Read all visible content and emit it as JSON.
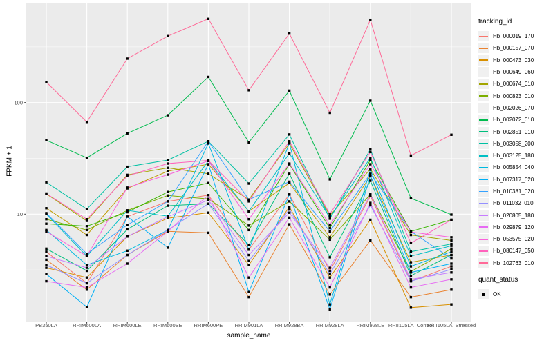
{
  "figure": {
    "background": "#FFFFFF",
    "panel_background": "#EBEBEB",
    "gridline_color": "#FFFFFF",
    "tick_color": "#333333",
    "tick_label_color": "#4D4D4D",
    "marker_color": "#000000"
  },
  "legend": {
    "tracking_title": "tracking_id",
    "quant_title": "quant_status",
    "quant_items": [
      {
        "label": "OK",
        "marker": "black-square"
      }
    ]
  },
  "chart_data": {
    "type": "line",
    "title": "",
    "xlabel": "sample_name",
    "ylabel": "FPKM + 1",
    "y_scale": "log10",
    "ylim": [
      1.15,
      740
    ],
    "y_major_ticks": [
      {
        "value": 100,
        "label": "100"
      },
      {
        "value": 10,
        "label": "10"
      }
    ],
    "y_minor_ticks": [
      3.162,
      31.62,
      316.2
    ],
    "grid": true,
    "legend_position": "right",
    "marker": "filled-black-square (quant_status = OK)",
    "categories": [
      "PB350LA",
      "RRIM600LA",
      "RRIM600LE",
      "RRIM600SE",
      "RRIM600PE",
      "RRIM901LA",
      "RRIM928BA",
      "RRIM928LA",
      "RRIM928LE",
      "RRII105LA_Control",
      "RRII105LA_Stressed"
    ],
    "series": [
      {
        "name": "Hb_000019_170",
        "color": "#F8766D",
        "values": [
          4.6,
          2.4,
          9.5,
          13.0,
          14.8,
          4.8,
          15.0,
          3.1,
          14.5,
          2.5,
          3.4
        ]
      },
      {
        "name": "Hb_000157_070",
        "color": "#EA8331",
        "values": [
          3.9,
          2.1,
          4.3,
          7.0,
          6.8,
          1.8,
          8.1,
          1.9,
          5.8,
          1.8,
          2.1
        ]
      },
      {
        "name": "Hb_000473_030",
        "color": "#D89000",
        "values": [
          3.3,
          2.7,
          6.3,
          9.2,
          10.3,
          3.5,
          11.6,
          2.7,
          8.9,
          1.45,
          1.55
        ]
      },
      {
        "name": "Hb_000649_060",
        "color": "#C09B00",
        "values": [
          11.3,
          6.5,
          17.0,
          24.3,
          28.0,
          10.6,
          19.0,
          6.2,
          22.0,
          3.7,
          4.3
        ]
      },
      {
        "name": "Hb_000674_010",
        "color": "#A3A500",
        "values": [
          15.2,
          8.7,
          22.5,
          26.0,
          23.0,
          13.5,
          43.0,
          9.7,
          25.4,
          6.5,
          5.8
        ]
      },
      {
        "name": "Hb_000823_010",
        "color": "#7CAE00",
        "values": [
          9.0,
          7.2,
          10.8,
          14.7,
          13.7,
          7.9,
          13.0,
          5.9,
          15.0,
          3.05,
          4.9
        ]
      },
      {
        "name": "Hb_002026_070",
        "color": "#39B600",
        "values": [
          8.2,
          7.8,
          10.4,
          15.8,
          19.0,
          7.2,
          28.0,
          7.5,
          30.5,
          7.0,
          8.9
        ]
      },
      {
        "name": "Hb_002072_010",
        "color": "#00BB4E",
        "values": [
          46,
          32,
          53,
          77,
          170,
          44,
          128,
          20.5,
          104,
          13.9,
          9.9
        ]
      },
      {
        "name": "Hb_002851_010",
        "color": "#00BF7D",
        "values": [
          4.9,
          3.1,
          7.3,
          11.9,
          12.4,
          5.3,
          23.0,
          4.1,
          19.9,
          2.8,
          4.3
        ]
      },
      {
        "name": "Hb_003058_200",
        "color": "#00C1A3",
        "values": [
          19.3,
          11.1,
          26.6,
          30.5,
          45.0,
          18.8,
          51.8,
          9.1,
          38.0,
          4.6,
          5.4
        ]
      },
      {
        "name": "Hb_003125_180",
        "color": "#00BFC4",
        "values": [
          10.0,
          4.2,
          10.8,
          9.6,
          30.0,
          10.6,
          35.0,
          9.3,
          32.0,
          4.2,
          5.2
        ]
      },
      {
        "name": "Hb_005854_040",
        "color": "#00BAE0",
        "values": [
          7.2,
          3.5,
          4.7,
          7.2,
          43.0,
          4.8,
          43.4,
          1.55,
          25.0,
          3.4,
          4.6
        ]
      },
      {
        "name": "Hb_007317_020",
        "color": "#00B0F6",
        "values": [
          2.9,
          1.47,
          9.5,
          5.0,
          28.0,
          2.0,
          15.0,
          1.4,
          22.0,
          3.0,
          3.6
        ]
      },
      {
        "name": "Hb_010381_020",
        "color": "#35A2FF",
        "values": [
          10.2,
          4.4,
          8.0,
          13.0,
          45.0,
          13.5,
          19.5,
          7.0,
          23.0,
          7.0,
          4.0
        ]
      },
      {
        "name": "Hb_011032_010",
        "color": "#9590FF",
        "values": [
          3.5,
          2.4,
          4.3,
          7.2,
          12.4,
          3.8,
          11.0,
          2.9,
          12.0,
          2.5,
          3.2
        ]
      },
      {
        "name": "Hb_020805_180",
        "color": "#C77CFF",
        "values": [
          4.2,
          3.3,
          6.3,
          9.5,
          13.4,
          4.3,
          10.3,
          3.3,
          15.0,
          2.6,
          3.0
        ]
      },
      {
        "name": "Hb_029879_120",
        "color": "#E76BF3",
        "values": [
          2.5,
          2.2,
          3.6,
          7.0,
          14.8,
          2.7,
          9.3,
          2.2,
          12.6,
          2.2,
          2.6
        ]
      },
      {
        "name": "Hb_053575_020",
        "color": "#FA62DB",
        "values": [
          7.0,
          4.2,
          17.3,
          22.6,
          30.0,
          9.0,
          28.4,
          8.0,
          28.0,
          6.9,
          6.2
        ]
      },
      {
        "name": "Hb_080147_050",
        "color": "#FF62BC",
        "values": [
          15.3,
          9.0,
          22.0,
          28.4,
          30.3,
          13.0,
          45.0,
          10.0,
          36.0,
          5.5,
          8.9
        ]
      },
      {
        "name": "Hb_102763_010",
        "color": "#FF6A98",
        "values": [
          153,
          67,
          248,
          395,
          564,
          129,
          416,
          81,
          553,
          33.5,
          51.5
        ]
      }
    ]
  }
}
